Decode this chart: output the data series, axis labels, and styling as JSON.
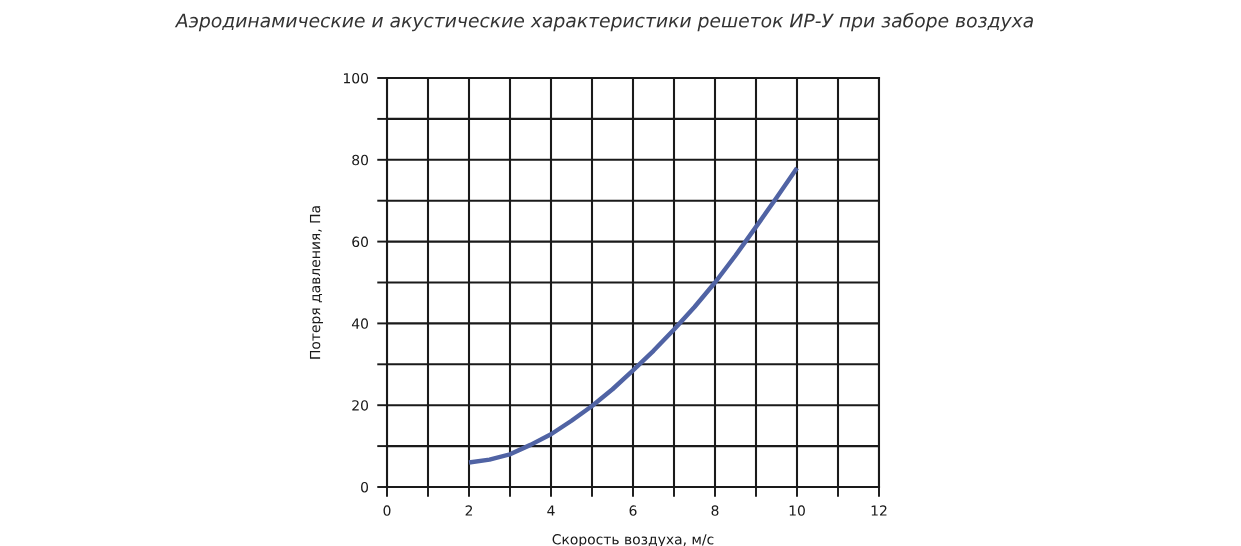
{
  "chart_data": {
    "type": "line",
    "title": "Аэродинамические и акустические характеристики решеток ИР-У при заборе воздуха",
    "xlabel": "Скорость воздуха, м/с",
    "ylabel": "Потеря давления, Па",
    "series": [
      {
        "color": "#5063a4",
        "x": [
          2,
          2.5,
          3,
          3.5,
          4,
          4.5,
          5,
          5.5,
          6,
          6.5,
          7,
          7.5,
          8,
          8.5,
          9,
          9.5,
          10
        ],
        "values": [
          6,
          6.7,
          8,
          10.3,
          12.9,
          16.2,
          19.8,
          23.9,
          28.5,
          33.3,
          38.5,
          44,
          50,
          56.6,
          63.6,
          70.7,
          78
        ]
      }
    ],
    "xlim": [
      0,
      12
    ],
    "ylim": [
      0,
      100
    ],
    "xticks": [
      0,
      {
        "value": 1,
        "label": null
      },
      2,
      {
        "value": 3,
        "label": null
      },
      4,
      {
        "value": 5,
        "label": null
      },
      6,
      {
        "value": 7,
        "label": null
      },
      8,
      {
        "value": 9,
        "label": null
      },
      10,
      {
        "value": 11,
        "label": null
      },
      12
    ],
    "yticks": [
      0,
      {
        "value": 10,
        "label": null
      },
      20,
      {
        "value": 30,
        "label": null
      },
      40,
      {
        "value": 50,
        "label": null
      },
      60,
      {
        "value": 70,
        "label": null
      },
      80,
      {
        "value": 90,
        "label": null
      },
      100
    ],
    "grid": true,
    "marker": "none",
    "line_style": "solid"
  }
}
